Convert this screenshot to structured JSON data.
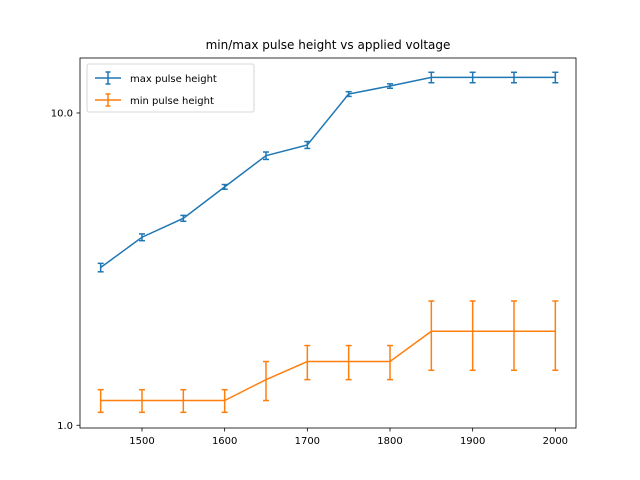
{
  "chart_data": {
    "type": "line",
    "title": "min/max pulse height vs applied voltage",
    "xlabel": "",
    "ylabel": "",
    "xlim": [
      1425,
      2025
    ],
    "ylim": [
      0.98,
      15
    ],
    "yscale": "log",
    "grid": false,
    "legend_position": "top-left",
    "x_ticks": [
      1500,
      1600,
      1700,
      1800,
      1900,
      2000
    ],
    "y_ticks": [
      1.0,
      10.0
    ],
    "x_tick_labels": [
      "1500",
      "1600",
      "1700",
      "1800",
      "1900",
      "2000"
    ],
    "y_tick_labels": [
      "1.0",
      "10.0"
    ],
    "x": [
      1450,
      1500,
      1550,
      1600,
      1650,
      1700,
      1750,
      1800,
      1850,
      1900,
      1950,
      2000
    ],
    "series": [
      {
        "name": "max pulse height",
        "color": "#1f77b4",
        "values": [
          3.2,
          4.0,
          4.6,
          5.8,
          7.3,
          7.9,
          11.5,
          12.2,
          13.0,
          13.0,
          13.0,
          13.0
        ],
        "errors": [
          0.1,
          0.1,
          0.1,
          0.1,
          0.2,
          0.2,
          0.2,
          0.2,
          0.5,
          0.5,
          0.5,
          0.5
        ]
      },
      {
        "name": "min pulse height",
        "color": "#ff7f0e",
        "values": [
          1.2,
          1.2,
          1.2,
          1.2,
          1.4,
          1.6,
          1.6,
          1.6,
          2.0,
          2.0,
          2.0,
          2.0
        ],
        "errors": [
          0.1,
          0.1,
          0.1,
          0.1,
          0.2,
          0.2,
          0.2,
          0.2,
          0.5,
          0.5,
          0.5,
          0.5
        ]
      }
    ]
  }
}
